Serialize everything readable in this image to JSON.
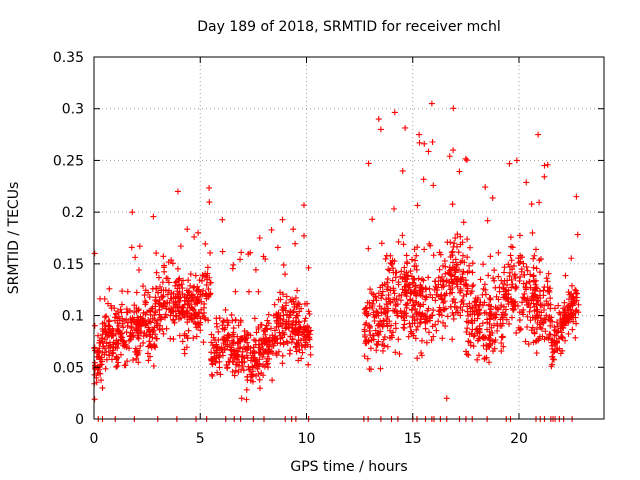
{
  "chart_data": {
    "type": "scatter",
    "title": "Day 189 of 2018, SRMTID for receiver mchl",
    "xlabel": "GPS time / hours",
    "ylabel": "SRMTID / TECUs",
    "xlim": [
      0,
      24
    ],
    "ylim": [
      0,
      0.35
    ],
    "xticks": [
      0,
      5,
      10,
      15,
      20
    ],
    "xtick_labels": [
      "0",
      "5",
      "10",
      "15",
      "20"
    ],
    "yticks": [
      0,
      0.05,
      0.1,
      0.15,
      0.2,
      0.25,
      0.3,
      0.35
    ],
    "ytick_labels": [
      "0",
      "0.05",
      "0.1",
      "0.15",
      "0.2",
      "0.25",
      "0.3",
      "0.35"
    ],
    "grid": true,
    "marker": "+",
    "color": "#ff0000",
    "series": [
      {
        "name": "SRMTID",
        "segments": [
          {
            "x_range": [
              0.0,
              2.5
            ],
            "y_base_range": [
              0.05,
              0.11
            ],
            "y_spread": 0.03
          },
          {
            "x_range": [
              2.5,
              5.5
            ],
            "y_base_range": [
              0.09,
              0.13
            ],
            "y_spread": 0.035
          },
          {
            "x_range": [
              5.5,
              10.2
            ],
            "y_base_range": [
              0.06,
              0.09
            ],
            "y_spread": 0.03
          },
          {
            "x_range": [
              12.7,
              17.5
            ],
            "y_base_range": [
              0.1,
              0.13
            ],
            "y_spread": 0.045
          },
          {
            "x_range": [
              17.5,
              21.5
            ],
            "y_base_range": [
              0.1,
              0.12
            ],
            "y_spread": 0.04
          },
          {
            "x_range": [
              21.5,
              22.8
            ],
            "y_base_range": [
              0.08,
              0.1
            ],
            "y_spread": 0.025
          }
        ],
        "notable_points": [
          {
            "x": 3.95,
            "y": 0.22
          },
          {
            "x": 1.8,
            "y": 0.2
          },
          {
            "x": 4.9,
            "y": 0.18
          },
          {
            "x": 7.8,
            "y": 0.175
          },
          {
            "x": 13.4,
            "y": 0.29
          },
          {
            "x": 13.5,
            "y": 0.28
          },
          {
            "x": 15.9,
            "y": 0.305
          },
          {
            "x": 15.3,
            "y": 0.275
          },
          {
            "x": 16.9,
            "y": 0.26
          },
          {
            "x": 19.9,
            "y": 0.25
          },
          {
            "x": 20.9,
            "y": 0.275
          },
          {
            "x": 21.2,
            "y": 0.245
          },
          {
            "x": 22.7,
            "y": 0.215
          },
          {
            "x": 6.95,
            "y": 0.02
          },
          {
            "x": 16.6,
            "y": 0.02
          },
          {
            "x": 0.4,
            "y": 0.03
          }
        ],
        "zero_points_x": [
          0.2,
          0.4,
          1.0,
          1.9,
          3.0,
          3.9,
          4.8,
          5.3,
          6.2,
          6.6,
          6.9,
          7.5,
          8.0,
          9.0,
          9.3,
          9.5,
          10.1,
          12.7,
          12.9,
          13.5,
          14.0,
          14.3,
          15.0,
          15.2,
          15.6,
          15.9,
          16.0,
          16.3,
          16.6,
          17.2,
          17.5,
          17.8,
          18.5,
          19.4,
          19.6,
          20.8,
          21.0,
          21.2,
          21.5,
          21.6,
          21.7,
          21.9,
          22.1,
          22.5
        ]
      }
    ]
  }
}
